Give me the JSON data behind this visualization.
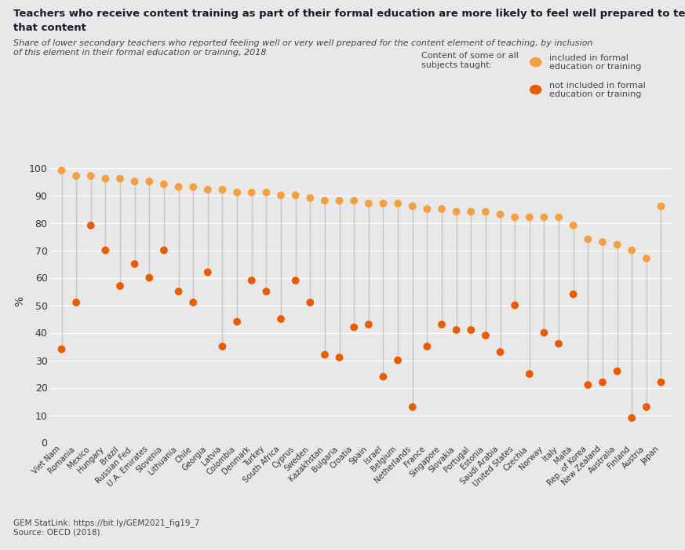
{
  "background_color": "#e8e8e8",
  "light_orange": "#f5a040",
  "dark_orange": "#e85d04",
  "line_color": "#c8c8c8",
  "countries": [
    "Viet Nam",
    "Romania",
    "Mexico",
    "Hungary",
    "Brazil",
    "Russian Fed.",
    "U.A. Emirates",
    "Slovenia",
    "Lithuania",
    "Chile",
    "Georgia",
    "Latvia",
    "Colombia",
    "Denmark",
    "Turkey",
    "South Africa",
    "Cyprus",
    "Sweden",
    "Kazakhstan",
    "Bulgaria",
    "Croatia",
    "Spain",
    "Israel",
    "Belgium",
    "Netherlands",
    "France",
    "Singapore",
    "Slovakia",
    "Portugal",
    "Estonia",
    "Saudi Arabia",
    "United States",
    "Czechia",
    "Norway",
    "Italy",
    "Malta",
    "Rep. of Korea",
    "New Zealand",
    "Australia",
    "Finland",
    "Austria",
    "Japan"
  ],
  "included": [
    99,
    97,
    97,
    96,
    96,
    95,
    95,
    94,
    93,
    93,
    92,
    92,
    91,
    91,
    91,
    90,
    90,
    89,
    88,
    88,
    88,
    87,
    87,
    87,
    86,
    85,
    85,
    84,
    84,
    84,
    83,
    82,
    82,
    82,
    82,
    79,
    74,
    73,
    72,
    70,
    67,
    86
  ],
  "not_included": [
    34,
    51,
    79,
    70,
    57,
    65,
    60,
    70,
    55,
    51,
    62,
    35,
    44,
    59,
    55,
    45,
    59,
    51,
    32,
    31,
    42,
    43,
    24,
    30,
    13,
    35,
    43,
    41,
    41,
    39,
    33,
    50,
    25,
    40,
    36,
    54,
    21,
    22,
    26,
    9,
    13,
    22
  ],
  "title_line1": "Teachers who receive content training as part of their formal education are more likely to feel well prepared to teach",
  "title_line2": "that content",
  "subtitle": "Share of lower secondary teachers who reported feeling well or very well prepared for the content element of teaching, by inclusion\nof this element in their formal education or training, 2018",
  "legend_title": "Content of some or all\nsubjects taught:",
  "legend_included": "included in formal\neducation or training",
  "legend_not_included": "not included in formal\neducation or training",
  "footer": "GEM StatLink: https://bit.ly/GEM2021_fig19_7\nSource: OECD (2018).",
  "ylabel": "%",
  "yticks": [
    0,
    10,
    20,
    30,
    40,
    50,
    60,
    70,
    80,
    90,
    100
  ]
}
